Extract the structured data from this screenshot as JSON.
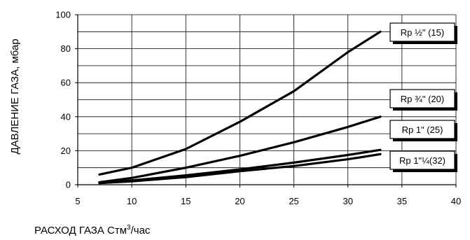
{
  "chart_data": {
    "type": "line",
    "xlabel": "РАСХОД ГАЗА Стм",
    "xlabel_sup": "3",
    "xlabel_suffix": "/час",
    "ylabel": "ДАВЛЕНИЕ ГАЗА, мбар",
    "xlim": [
      5,
      40
    ],
    "ylim": [
      0,
      100
    ],
    "xticks": [
      5,
      10,
      15,
      20,
      25,
      30,
      35,
      40
    ],
    "yticks": [
      0,
      20,
      40,
      60,
      80,
      100
    ],
    "grid": true,
    "legend": "right, boxed labels beside line ends",
    "series": [
      {
        "name": "Rp ½\" (15)",
        "x": [
          7,
          10,
          15,
          20,
          25,
          30,
          33
        ],
        "y": [
          6,
          10,
          21,
          37,
          55,
          78,
          90
        ]
      },
      {
        "name": "Rp ¾\" (20)",
        "x": [
          7,
          10,
          15,
          20,
          25,
          30,
          33
        ],
        "y": [
          1.5,
          4,
          10,
          17,
          25,
          34,
          40
        ]
      },
      {
        "name": "Rp 1\" (25)",
        "x": [
          7,
          10,
          15,
          20,
          25,
          30,
          33
        ],
        "y": [
          1,
          2.5,
          5.5,
          9,
          13,
          17.5,
          20.5
        ]
      },
      {
        "name": "Rp 1\"¼(32)",
        "x": [
          7,
          10,
          15,
          20,
          25,
          30,
          33
        ],
        "y": [
          1,
          2,
          4.5,
          8,
          11,
          15,
          18
        ]
      }
    ]
  }
}
